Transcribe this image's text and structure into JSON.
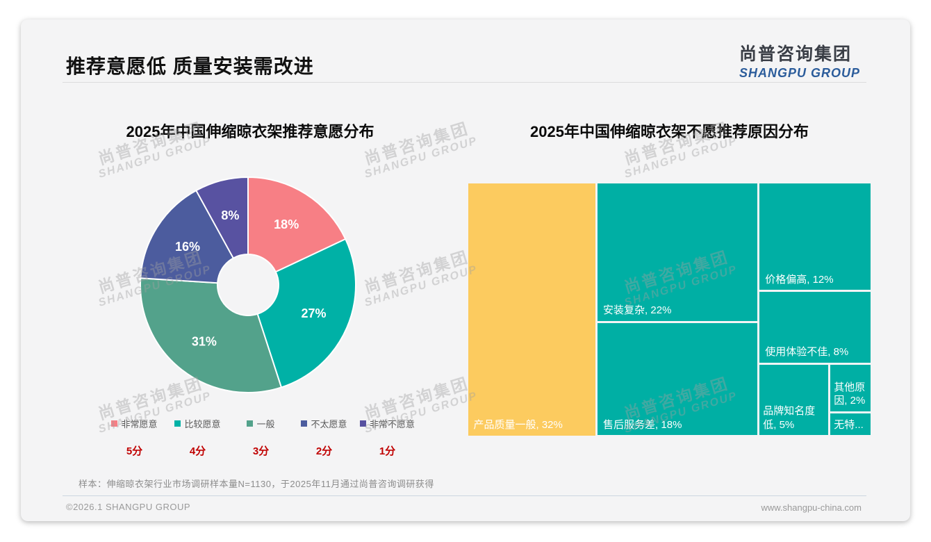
{
  "page": {
    "title": "推荐意愿低 质量安装需改进",
    "logo": {
      "cn": "尚普咨询集团",
      "en": "SHANGPU GROUP"
    },
    "watermark": {
      "cn": "尚普咨询集团",
      "en": "SHANGPU GROUP"
    },
    "note": "样本：伸缩晾衣架行业市场调研样本量N=1130，于2025年11月通过尚普咨询调研获得",
    "footer": {
      "copyright": "©2026.1 SHANGPU GROUP",
      "website": "www.shangpu-china.com"
    }
  },
  "colors": {
    "card_background": "#f4f4f5",
    "score_red": "#c00000",
    "logo_blue": "#2b5c9b",
    "treemap_teal": "#00afa4",
    "treemap_yellow": "#fccb5f"
  },
  "chart_data": [
    {
      "type": "pie",
      "subtype": "donut",
      "title": "2025年中国伸缩晾衣架推荐意愿分布",
      "categories": [
        "非常愿意",
        "比较愿意",
        "一般",
        "不太愿意",
        "非常不愿意"
      ],
      "values": [
        18,
        27,
        31,
        16,
        8
      ],
      "data_labels": [
        "18%",
        "27%",
        "31%",
        "16%",
        "8%"
      ],
      "scores": [
        "5分",
        "4分",
        "3分",
        "2分",
        "1分"
      ],
      "colors": [
        "#f77f85",
        "#00b1a6",
        "#53a28b",
        "#4c5c9e",
        "#5852a1"
      ],
      "start_angle_deg": 0,
      "direction": "clockwise",
      "inner_radius_ratio": 0.28,
      "legend_position": "bottom"
    },
    {
      "type": "treemap",
      "title": "2025年中国伸缩晾衣架不愿推荐原因分布",
      "items": [
        {
          "label": "产品质量一般",
          "value": 32,
          "display": "产品质量一般, 32%",
          "color": "#fccb5f"
        },
        {
          "label": "安装复杂",
          "value": 22,
          "display": "安装复杂, 22%",
          "color": "#00afa4"
        },
        {
          "label": "售后服务差",
          "value": 18,
          "display": "售后服务差, 18%",
          "color": "#00afa4"
        },
        {
          "label": "价格偏高",
          "value": 12,
          "display": "价格偏高, 12%",
          "color": "#00afa4"
        },
        {
          "label": "使用体验不佳",
          "value": 8,
          "display": "使用体验不佳, 8%",
          "color": "#00afa4"
        },
        {
          "label": "品牌知名度低",
          "value": 5,
          "display": "品牌知名度低, 5%",
          "color": "#00afa4"
        },
        {
          "label": "其他原因",
          "value": 2,
          "display": "其他原因, 2%",
          "color": "#00afa4"
        },
        {
          "label": "无特...",
          "value": 1,
          "display": "无特...",
          "color": "#00afa4"
        }
      ]
    }
  ]
}
